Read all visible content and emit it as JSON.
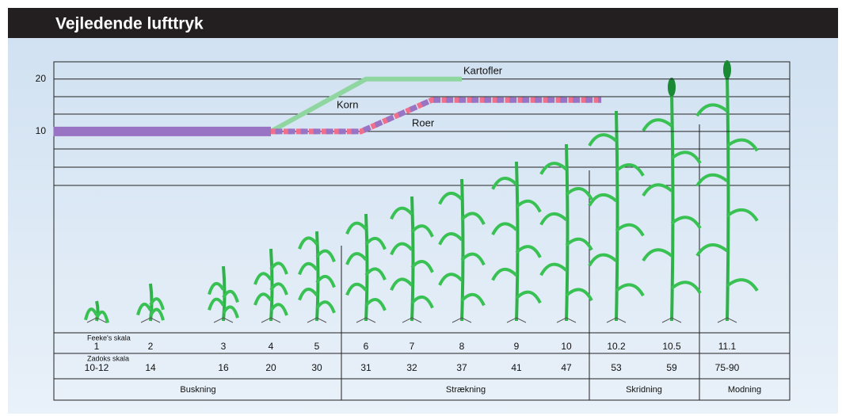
{
  "chart_data": {
    "type": "line",
    "title": "Vejledende lufttryk",
    "ylim": [
      0,
      23.3
    ],
    "yticks": [
      10,
      20
    ],
    "x_row_label": "Feeke's skala",
    "categories": [
      "1",
      "2",
      "3",
      "4",
      "5",
      "6",
      "7",
      "8",
      "9",
      "10",
      "10.2",
      "10.5",
      "11.1"
    ],
    "zadoks_label": "Zadoks skala",
    "zadoks": [
      "10-12",
      "14",
      "16",
      "20",
      "30",
      "31",
      "32",
      "37",
      "41",
      "47",
      "53",
      "59",
      "75-90"
    ],
    "phases": [
      "Buskning",
      "Strækning",
      "Skridning",
      "Modning"
    ],
    "series": [
      {
        "name": "Kartofler",
        "color": "#8fd6a0",
        "x": [
          3,
          5,
          7
        ],
        "values": [
          10,
          20,
          20
        ]
      },
      {
        "name": "Korn",
        "color": "#f0708c",
        "x": [
          3,
          4.9,
          6.4,
          9.7
        ],
        "values": [
          10,
          10,
          16,
          16
        ]
      },
      {
        "name": "Roer",
        "color": "#9a74c4",
        "x": [
          -0.8,
          3,
          4.9,
          6.4,
          9.7
        ],
        "values": [
          10,
          10,
          10,
          16,
          16
        ]
      }
    ]
  }
}
